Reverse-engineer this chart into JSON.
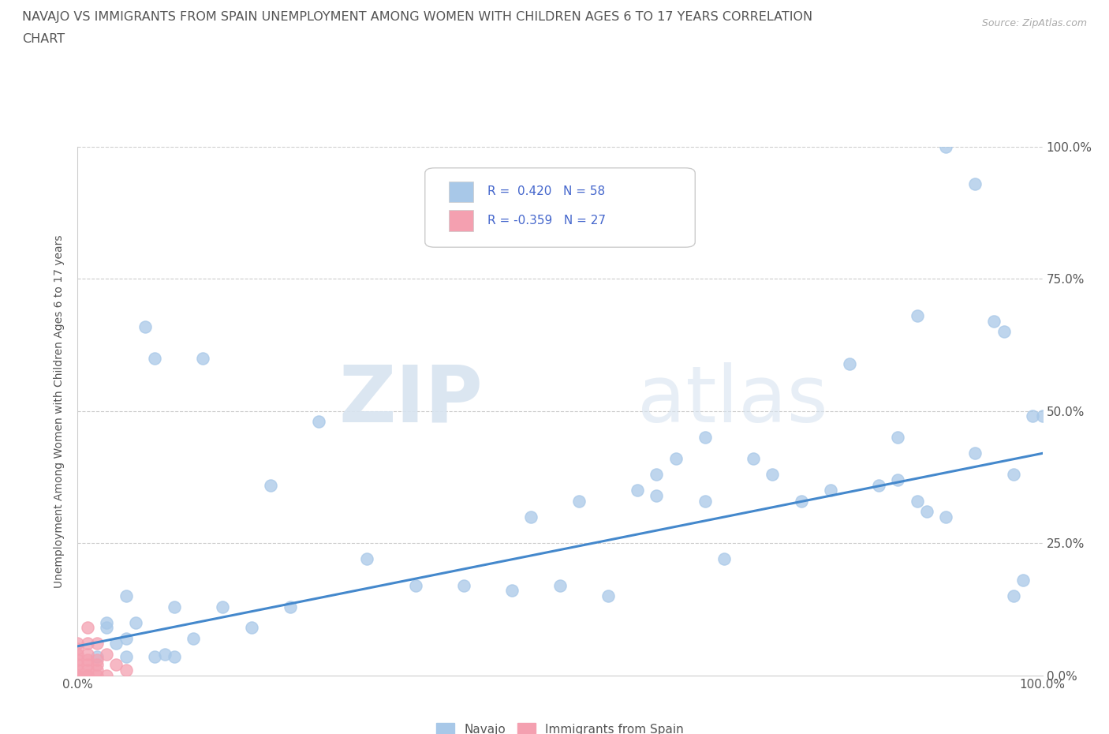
{
  "title_line1": "NAVAJO VS IMMIGRANTS FROM SPAIN UNEMPLOYMENT AMONG WOMEN WITH CHILDREN AGES 6 TO 17 YEARS CORRELATION",
  "title_line2": "CHART",
  "source": "Source: ZipAtlas.com",
  "ylabel": "Unemployment Among Women with Children Ages 6 to 17 years",
  "navajo_R": 0.42,
  "navajo_N": 58,
  "spain_R": -0.359,
  "spain_N": 27,
  "navajo_color": "#a8c8e8",
  "spain_color": "#f4a0b0",
  "trend_color": "#4488cc",
  "background_color": "#ffffff",
  "grid_color": "#cccccc",
  "watermark_zip": "ZIP",
  "watermark_atlas": "atlas",
  "navajo_x": [
    0.02,
    0.03,
    0.03,
    0.04,
    0.05,
    0.05,
    0.06,
    0.07,
    0.08,
    0.09,
    0.1,
    0.12,
    0.13,
    0.15,
    0.18,
    0.2,
    0.22,
    0.25,
    0.3,
    0.35,
    0.4,
    0.45,
    0.47,
    0.5,
    0.52,
    0.55,
    0.58,
    0.6,
    0.62,
    0.65,
    0.67,
    0.7,
    0.72,
    0.75,
    0.78,
    0.8,
    0.83,
    0.85,
    0.87,
    0.88,
    0.9,
    0.9,
    0.93,
    0.95,
    0.96,
    0.97,
    0.98,
    0.99,
    1.0,
    0.05,
    0.08,
    0.1,
    0.6,
    0.65,
    0.85,
    0.87,
    0.93,
    0.97
  ],
  "navajo_y": [
    0.035,
    0.09,
    0.1,
    0.06,
    0.07,
    0.15,
    0.1,
    0.66,
    0.6,
    0.04,
    0.13,
    0.07,
    0.6,
    0.13,
    0.09,
    0.36,
    0.13,
    0.48,
    0.22,
    0.17,
    0.17,
    0.16,
    0.3,
    0.17,
    0.33,
    0.15,
    0.35,
    0.34,
    0.41,
    0.33,
    0.22,
    0.41,
    0.38,
    0.33,
    0.35,
    0.59,
    0.36,
    0.37,
    0.33,
    0.31,
    1.0,
    0.3,
    0.93,
    0.67,
    0.65,
    0.15,
    0.18,
    0.49,
    0.49,
    0.035,
    0.035,
    0.035,
    0.38,
    0.45,
    0.45,
    0.68,
    0.42,
    0.38
  ],
  "spain_x": [
    0.0,
    0.0,
    0.0,
    0.0,
    0.0,
    0.0,
    0.0,
    0.0,
    0.0,
    0.0,
    0.01,
    0.01,
    0.01,
    0.01,
    0.01,
    0.01,
    0.01,
    0.01,
    0.02,
    0.02,
    0.02,
    0.02,
    0.02,
    0.03,
    0.03,
    0.04,
    0.05
  ],
  "spain_y": [
    0.0,
    0.0,
    0.0,
    0.0,
    0.01,
    0.02,
    0.03,
    0.04,
    0.05,
    0.06,
    0.0,
    0.0,
    0.01,
    0.02,
    0.03,
    0.04,
    0.06,
    0.09,
    0.0,
    0.01,
    0.02,
    0.03,
    0.06,
    0.0,
    0.04,
    0.02,
    0.01
  ],
  "trend_x0": 0.0,
  "trend_y0": 0.055,
  "trend_x1": 1.0,
  "trend_y1": 0.42,
  "xlim": [
    0.0,
    1.0
  ],
  "ylim": [
    0.0,
    1.0
  ],
  "xticks": [
    0.0,
    1.0
  ],
  "xticklabels": [
    "0.0%",
    "100.0%"
  ],
  "yticks": [
    0.0,
    0.25,
    0.5,
    0.75,
    1.0
  ],
  "yticklabels": [
    "0.0%",
    "25.0%",
    "50.0%",
    "75.0%",
    "100.0%"
  ]
}
